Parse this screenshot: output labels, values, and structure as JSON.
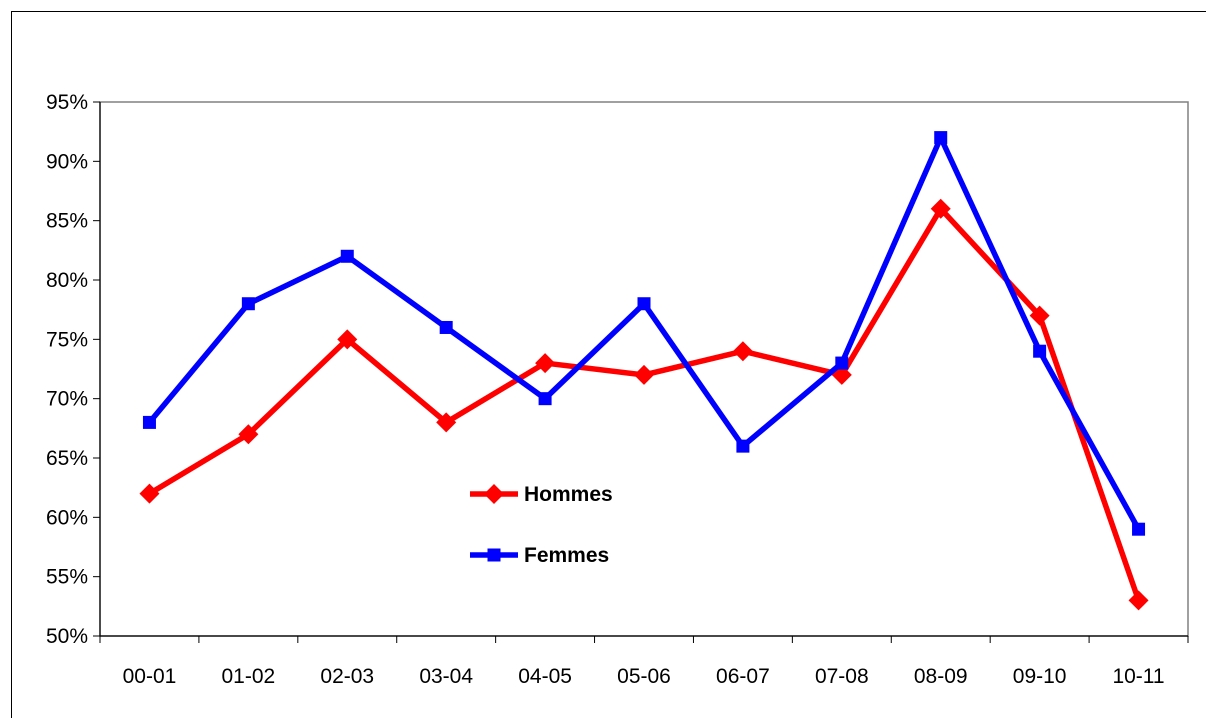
{
  "chart_data": {
    "type": "line",
    "title": "",
    "xlabel": "",
    "ylabel": "",
    "categories": [
      "00-01",
      "01-02",
      "02-03",
      "03-04",
      "04-05",
      "05-06",
      "06-07",
      "07-08",
      "08-09",
      "09-10",
      "10-11"
    ],
    "y_tick_labels": [
      "95%",
      "90%",
      "85%",
      "80%",
      "75%",
      "70%",
      "65%",
      "60%",
      "55%",
      "50%"
    ],
    "ylim": [
      50,
      95
    ],
    "y_unit": "%",
    "grid": false,
    "legend_position": "inside-center",
    "series": [
      {
        "name": "Hommes",
        "color": "#ff0000",
        "marker": "diamond",
        "values": [
          62,
          67,
          75,
          68,
          73,
          72,
          74,
          72,
          86,
          77,
          53
        ]
      },
      {
        "name": "Femmes",
        "color": "#0000ff",
        "marker": "square",
        "values": [
          68,
          78,
          82,
          76,
          70,
          78,
          66,
          73,
          92,
          74,
          59
        ]
      }
    ]
  }
}
